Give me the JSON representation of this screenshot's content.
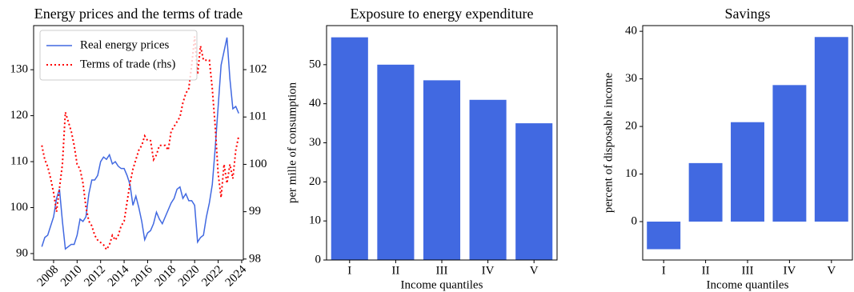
{
  "chart_data": [
    {
      "type": "line",
      "title": "Energy prices and the terms of trade",
      "legend": "upper left",
      "x": [
        2007,
        2007.25,
        2007.5,
        2007.75,
        2008,
        2008.25,
        2008.5,
        2008.75,
        2009,
        2009.25,
        2009.5,
        2009.75,
        2010,
        2010.25,
        2010.5,
        2010.75,
        2011,
        2011.25,
        2011.5,
        2011.75,
        2012,
        2012.25,
        2012.5,
        2012.75,
        2013,
        2013.25,
        2013.5,
        2013.75,
        2014,
        2014.25,
        2014.5,
        2014.75,
        2015,
        2015.25,
        2015.5,
        2015.75,
        2016,
        2016.25,
        2016.5,
        2016.75,
        2017,
        2017.25,
        2017.5,
        2017.75,
        2018,
        2018.25,
        2018.5,
        2018.75,
        2019,
        2019.25,
        2019.5,
        2019.75,
        2020,
        2020.25,
        2020.5,
        2020.75,
        2021,
        2021.25,
        2021.5,
        2021.75,
        2022,
        2022.25,
        2022.5,
        2022.75,
        2023,
        2023.25,
        2023.5,
        2023.75
      ],
      "series": [
        {
          "name": "Real energy prices",
          "color": "#4169e1",
          "style": "solid",
          "values": [
            91.5,
            93.5,
            94,
            96,
            98,
            102,
            104,
            97,
            91,
            91.5,
            92,
            92,
            94,
            97.5,
            97,
            98,
            103,
            106,
            106,
            107,
            110,
            111,
            110.5,
            111.5,
            109.5,
            110,
            109,
            108.5,
            108.5,
            107,
            105,
            100.5,
            102.5,
            100,
            97,
            93,
            94.5,
            95,
            96.5,
            99,
            97.5,
            96.5,
            98,
            99.5,
            101,
            102,
            104,
            104.5,
            102,
            103,
            101.5,
            101.5,
            100.5,
            92.5,
            93.5,
            94,
            98,
            101,
            105,
            113,
            122,
            131,
            134,
            137,
            128,
            121.5,
            122,
            120.5
          ]
        },
        {
          "name": "Terms of trade (rhs)",
          "color": "#ff0000",
          "style": "dotted",
          "axis": "y2",
          "values": [
            100.4,
            100.1,
            99.95,
            99.7,
            99.4,
            99.0,
            99.5,
            100.0,
            101.1,
            100.9,
            100.7,
            100.4,
            100.0,
            99.9,
            99.6,
            99.1,
            98.8,
            98.7,
            98.5,
            98.4,
            98.35,
            98.3,
            98.2,
            98.3,
            98.5,
            98.4,
            98.5,
            98.7,
            98.8,
            99.2,
            99.6,
            99.9,
            100.1,
            100.3,
            100.4,
            100.6,
            100.5,
            100.5,
            100.1,
            100.2,
            100.4,
            100.4,
            100.4,
            100.3,
            100.7,
            100.8,
            100.9,
            101.0,
            101.3,
            101.5,
            101.6,
            102.1,
            102.7,
            101.9,
            102.5,
            102.2,
            102.2,
            102.2,
            101.6,
            100.8,
            99.8,
            99.3,
            100.0,
            99.6,
            100.0,
            99.7,
            100.3,
            100.6
          ]
        }
      ],
      "xlim": [
        2006.3,
        2024.14
      ],
      "xticks": [
        2008,
        2010,
        2012,
        2014,
        2016,
        2018,
        2020,
        2022,
        2024
      ],
      "ylim": [
        88.6,
        139.6
      ],
      "yticks": [
        90,
        100,
        110,
        120,
        130
      ],
      "y2lim": [
        97.98,
        102.93
      ],
      "y2ticks": [
        98,
        99,
        100,
        101,
        102
      ]
    },
    {
      "type": "bar",
      "title": "Exposure to energy expenditure",
      "categories": [
        "I",
        "II",
        "III",
        "IV",
        "V"
      ],
      "values": [
        57,
        50,
        46,
        41,
        35
      ],
      "color": "#4169e1",
      "ylim": [
        0,
        60
      ],
      "yticks": [
        0,
        10,
        20,
        30,
        40,
        50
      ],
      "xlabel": "Income quantiles",
      "ylabel": "per mille of consumption"
    },
    {
      "type": "bar",
      "title": "Savings",
      "categories": [
        "I",
        "II",
        "III",
        "IV",
        "V"
      ],
      "values": [
        -5.8,
        12.3,
        20.9,
        28.7,
        38.8
      ],
      "color": "#4169e1",
      "ylim": [
        -8.07,
        41.2
      ],
      "yticks": [
        0,
        10,
        20,
        30,
        40
      ],
      "xlabel": "Income quantiles",
      "ylabel": "percent of disposable income"
    }
  ]
}
